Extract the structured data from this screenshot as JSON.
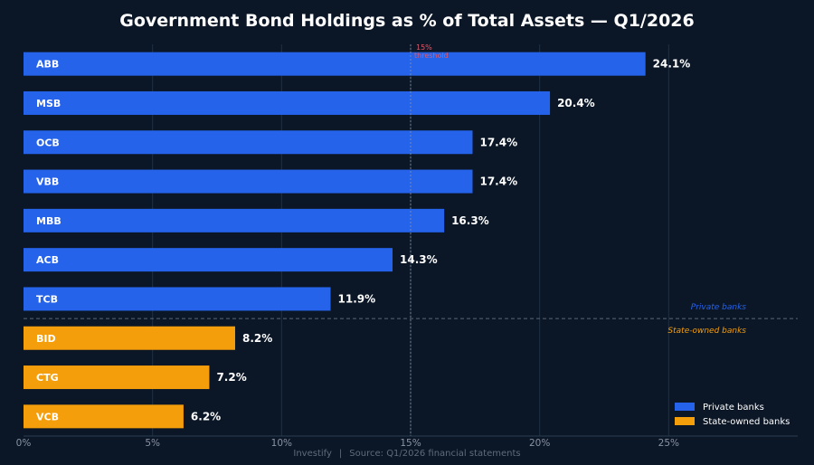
{
  "chart_data": {
    "type": "bar",
    "orientation": "horizontal",
    "title": "Government Bond Holdings as % of Total Assets — Q1/2026",
    "categories": [
      "ABB",
      "MSB",
      "OCB",
      "VBB",
      "MBB",
      "ACB",
      "TCB",
      "BID",
      "CTG",
      "VCB"
    ],
    "values": [
      24.1,
      20.4,
      17.4,
      17.4,
      16.3,
      14.3,
      11.9,
      8.2,
      7.2,
      6.2
    ],
    "value_labels": [
      "24.1%",
      "20.4%",
      "17.4%",
      "17.4%",
      "16.3%",
      "14.3%",
      "11.9%",
      "8.2%",
      "7.2%",
      "6.2%"
    ],
    "groups": [
      "private",
      "private",
      "private",
      "private",
      "private",
      "private",
      "private",
      "state",
      "state",
      "state"
    ],
    "series": [
      {
        "key": "private",
        "name": "Private banks",
        "color": "#2563eb"
      },
      {
        "key": "state",
        "name": "State-owned banks",
        "color": "#f59e0b"
      }
    ],
    "xlim": [
      0,
      30
    ],
    "xticks": [
      0,
      5,
      10,
      15,
      20,
      25
    ],
    "xtick_labels": [
      "0%",
      "5%",
      "10%",
      "15%",
      "20%",
      "25%"
    ],
    "threshold": {
      "value": 15,
      "label_line1": "15%",
      "label_line2": "threshold",
      "color": "#e05a6a"
    },
    "group_divider": {
      "upper_label": "Private banks",
      "lower_label": "State-owned banks"
    },
    "legend_position": "bottom-right",
    "grid": true
  },
  "footer": {
    "brand": "Investify",
    "source": "Source: Q1/2026 financial statements"
  }
}
